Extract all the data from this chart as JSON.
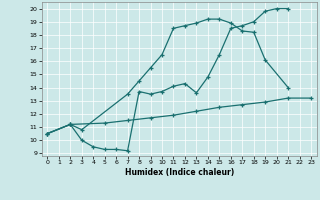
{
  "xlabel": "Humidex (Indice chaleur)",
  "background_color": "#cce8e8",
  "line_color": "#1a7070",
  "xlim": [
    -0.5,
    23.5
  ],
  "ylim": [
    8.8,
    20.5
  ],
  "xticks": [
    0,
    1,
    2,
    3,
    4,
    5,
    6,
    7,
    8,
    9,
    10,
    11,
    12,
    13,
    14,
    15,
    16,
    17,
    18,
    19,
    20,
    21,
    22,
    23
  ],
  "yticks": [
    9,
    10,
    11,
    12,
    13,
    14,
    15,
    16,
    17,
    18,
    19,
    20
  ],
  "line1_x": [
    0,
    2,
    3,
    4,
    5,
    6,
    7,
    8,
    9,
    10,
    11,
    12,
    13,
    14,
    15,
    16,
    17,
    18,
    19,
    20,
    21
  ],
  "line1_y": [
    10.5,
    11.2,
    10.0,
    9.5,
    9.3,
    9.3,
    9.2,
    13.7,
    13.5,
    13.7,
    14.1,
    14.3,
    13.6,
    14.8,
    16.5,
    18.5,
    18.7,
    19.0,
    19.8,
    20.0,
    20.0
  ],
  "line2_x": [
    0,
    2,
    3,
    7,
    8,
    9,
    10,
    11,
    12,
    13,
    14,
    15,
    16,
    17,
    18,
    19,
    21
  ],
  "line2_y": [
    10.5,
    11.2,
    10.8,
    13.5,
    14.5,
    15.5,
    16.5,
    18.5,
    18.7,
    18.9,
    19.2,
    19.2,
    18.9,
    18.3,
    18.2,
    16.1,
    14.0
  ],
  "line3_x": [
    0,
    2,
    5,
    7,
    9,
    11,
    13,
    15,
    17,
    19,
    21,
    23
  ],
  "line3_y": [
    10.5,
    11.2,
    11.3,
    11.5,
    11.7,
    11.9,
    12.2,
    12.5,
    12.7,
    12.9,
    13.2,
    13.2
  ]
}
